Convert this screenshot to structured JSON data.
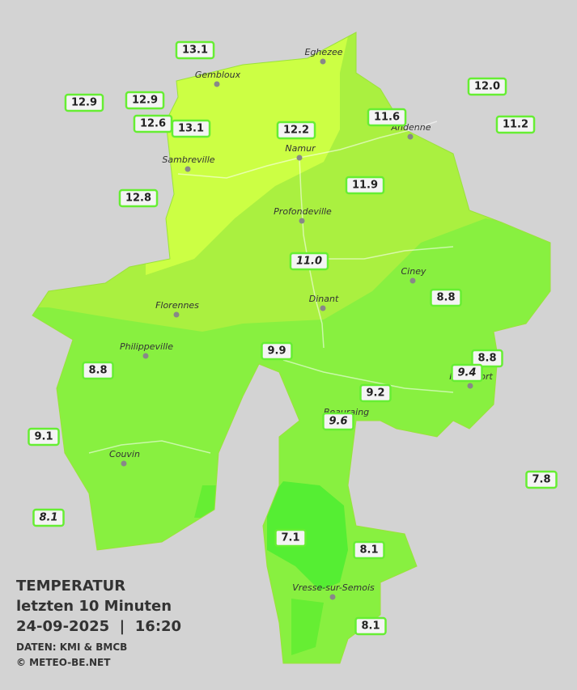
{
  "stations": [
    {
      "value": "13.1"
    },
    {
      "value": "12.9"
    },
    {
      "value": "12.9"
    },
    {
      "value": "12.6"
    },
    {
      "value": "13.1"
    },
    {
      "value": "12.2"
    },
    {
      "value": "11.6"
    },
    {
      "value": "12.0"
    },
    {
      "value": "11.2"
    },
    {
      "value": "12.8"
    },
    {
      "value": "11.9"
    },
    {
      "value": "11.0",
      "italic": true
    },
    {
      "value": "8.8"
    },
    {
      "value": "9.9"
    },
    {
      "value": "8.8"
    },
    {
      "value": "8.8"
    },
    {
      "value": "9.4",
      "italic": true
    },
    {
      "value": "9.2"
    },
    {
      "value": "9.6",
      "italic": true
    },
    {
      "value": "9.1"
    },
    {
      "value": "7.8"
    },
    {
      "value": "8.1",
      "italic": true
    },
    {
      "value": "7.1"
    },
    {
      "value": "8.1"
    },
    {
      "value": "8.1"
    }
  ],
  "cities": [
    "Eghezee",
    "Gembloux",
    "Andenne",
    "Namur",
    "Sambreville",
    "Profondeville",
    "Ciney",
    "Dinant",
    "Florennes",
    "Philippeville",
    "Rochefort",
    "Beauraing",
    "Couvin",
    "Vresse-sur-Semois"
  ],
  "legend": {
    "title": "TEMPERATUR",
    "subtitle": "letzten 10 Minuten",
    "datetime": "24-09-2025  |  16:20",
    "source": "DATEN: KMI & BMCB",
    "credit": "© METEO-BE.NET"
  }
}
